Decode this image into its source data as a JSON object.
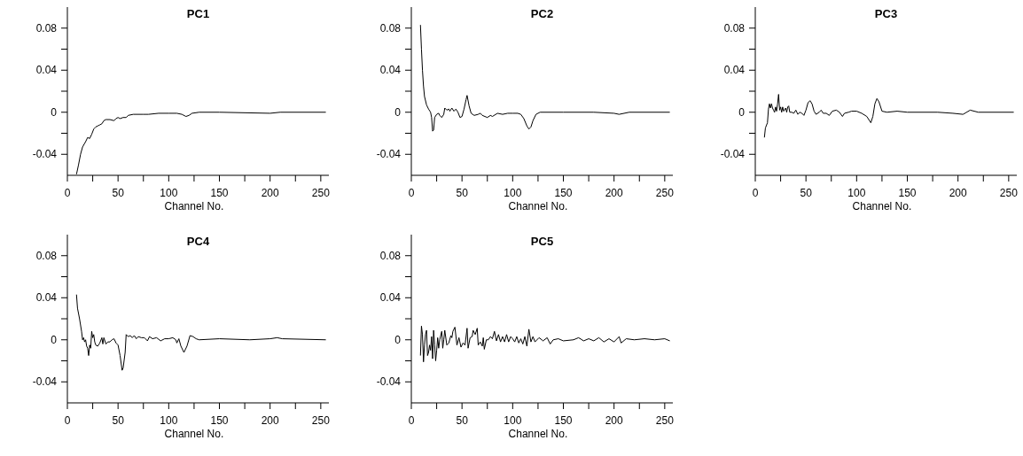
{
  "chart_data": [
    {
      "type": "line",
      "title": "PC1",
      "xlabel": "Channel No.",
      "xlim": [
        0,
        258
      ],
      "ylim": [
        -0.06,
        0.1
      ],
      "xticks": [
        0,
        {
          "value": 25,
          "label": null
        },
        50,
        {
          "value": 75,
          "label": null
        },
        100,
        {
          "value": 125,
          "label": null
        },
        150,
        {
          "value": 175,
          "label": null
        },
        200,
        {
          "value": 225,
          "label": null
        },
        250
      ],
      "yticks": [
        -0.04,
        {
          "value": -0.02,
          "label": null
        },
        0,
        {
          "value": 0.02,
          "label": null
        },
        0.04,
        {
          "value": 0.06,
          "label": null
        },
        0.08
      ],
      "series": [
        {
          "color": "#000000",
          "x": [
            9,
            11,
            13,
            15,
            18,
            20,
            22,
            24,
            26,
            28,
            30,
            32,
            34,
            36,
            38,
            42,
            46,
            48,
            50,
            52,
            55,
            58,
            60,
            65,
            75,
            80,
            90,
            100,
            108,
            113,
            117,
            120,
            123,
            130,
            150,
            200,
            210,
            255
          ],
          "values": [
            -0.059,
            -0.05,
            -0.04,
            -0.033,
            -0.028,
            -0.024,
            -0.025,
            -0.021,
            -0.016,
            -0.014,
            -0.013,
            -0.012,
            -0.011,
            -0.008,
            -0.007,
            -0.007,
            -0.008,
            -0.006,
            -0.005,
            -0.006,
            -0.005,
            -0.005,
            -0.003,
            -0.002,
            -0.002,
            -0.002,
            -0.001,
            -0.001,
            -0.001,
            -0.002,
            -0.004,
            -0.003,
            -0.001,
            0,
            0,
            -0.001,
            0,
            0
          ]
        }
      ]
    },
    {
      "type": "line",
      "title": "PC2",
      "xlabel": "Channel No.",
      "xlim": [
        0,
        258
      ],
      "ylim": [
        -0.06,
        0.1
      ],
      "xticks": [
        0,
        {
          "value": 25,
          "label": null
        },
        50,
        {
          "value": 75,
          "label": null
        },
        100,
        {
          "value": 125,
          "label": null
        },
        150,
        {
          "value": 175,
          "label": null
        },
        200,
        {
          "value": 225,
          "label": null
        },
        250
      ],
      "yticks": [
        -0.04,
        {
          "value": -0.02,
          "label": null
        },
        0,
        {
          "value": 0.02,
          "label": null
        },
        0.04,
        {
          "value": 0.06,
          "label": null
        },
        0.08
      ],
      "series": [
        {
          "color": "#000000",
          "x": [
            9,
            10,
            11,
            12,
            13,
            15,
            17,
            19,
            20,
            21,
            22,
            23,
            25,
            27,
            28,
            30,
            32,
            33,
            35,
            37,
            38,
            40,
            42,
            44,
            46,
            48,
            50,
            52,
            54,
            55,
            57,
            59,
            62,
            66,
            68,
            70,
            75,
            78,
            80,
            85,
            90,
            95,
            100,
            105,
            108,
            111,
            114,
            116,
            118,
            120,
            123,
            127,
            150,
            180,
            200,
            205,
            215,
            255
          ],
          "values": [
            0.083,
            0.06,
            0.04,
            0.025,
            0.015,
            0.007,
            0.003,
            0,
            -0.005,
            -0.018,
            -0.017,
            -0.005,
            -0.002,
            -0.001,
            -0.003,
            -0.005,
            -0.002,
            0.004,
            0.002,
            0.003,
            0.001,
            0.004,
            0.001,
            0.003,
            0,
            -0.005,
            -0.004,
            0.003,
            0.012,
            0.016,
            0.006,
            -0.001,
            -0.003,
            -0.002,
            -0.001,
            -0.003,
            -0.005,
            -0.003,
            -0.004,
            -0.001,
            -0.002,
            -0.001,
            -0.001,
            -0.001,
            -0.002,
            -0.006,
            -0.013,
            -0.016,
            -0.014,
            -0.008,
            -0.002,
            0,
            0,
            0,
            -0.001,
            -0.002,
            0,
            0
          ]
        }
      ]
    },
    {
      "type": "line",
      "title": "PC3",
      "xlabel": "Channel No.",
      "xlim": [
        0,
        258
      ],
      "ylim": [
        -0.06,
        0.1
      ],
      "xticks": [
        0,
        {
          "value": 25,
          "label": null
        },
        50,
        {
          "value": 75,
          "label": null
        },
        100,
        {
          "value": 125,
          "label": null
        },
        150,
        {
          "value": 175,
          "label": null
        },
        200,
        {
          "value": 225,
          "label": null
        },
        250
      ],
      "yticks": [
        -0.04,
        {
          "value": -0.02,
          "label": null
        },
        0,
        {
          "value": 0.02,
          "label": null
        },
        0.04,
        {
          "value": 0.06,
          "label": null
        },
        0.08
      ],
      "series": [
        {
          "color": "#000000",
          "x": [
            9,
            10,
            12,
            13,
            14,
            15,
            16,
            17,
            18,
            19,
            20,
            21,
            22,
            23,
            24,
            25,
            26,
            27,
            28,
            30,
            31,
            32,
            33,
            34,
            36,
            38,
            40,
            42,
            44,
            46,
            48,
            50,
            52,
            54,
            56,
            58,
            60,
            63,
            65,
            67,
            70,
            73,
            76,
            80,
            83,
            86,
            88,
            92,
            95,
            100,
            105,
            110,
            114,
            116,
            118,
            120,
            122,
            125,
            130,
            140,
            150,
            180,
            195,
            205,
            212,
            220,
            255
          ],
          "values": [
            -0.024,
            -0.015,
            -0.01,
            0.003,
            0.008,
            0.004,
            0.008,
            0.004,
            0.002,
            0,
            0.005,
            0.001,
            0.008,
            0.017,
            0.002,
            0.005,
            0,
            0.005,
            0.001,
            0.004,
            0,
            0.005,
            0.006,
            0,
            0,
            -0.001,
            0.002,
            -0.002,
            0,
            -0.001,
            -0.003,
            0.002,
            0.009,
            0.011,
            0.008,
            0.001,
            -0.002,
            0,
            0.002,
            -0.001,
            -0.001,
            -0.003,
            0.001,
            0.002,
            0,
            -0.004,
            -0.001,
            0,
            0.001,
            0.001,
            -0.001,
            -0.004,
            -0.01,
            -0.004,
            0.008,
            0.013,
            0.01,
            0.001,
            0,
            0.001,
            0,
            0,
            -0.001,
            -0.002,
            0.002,
            0,
            0
          ]
        }
      ]
    },
    {
      "type": "line",
      "title": "PC4",
      "xlabel": "Channel No.",
      "xlim": [
        0,
        258
      ],
      "ylim": [
        -0.06,
        0.1
      ],
      "xticks": [
        0,
        {
          "value": 25,
          "label": null
        },
        50,
        {
          "value": 75,
          "label": null
        },
        100,
        {
          "value": 125,
          "label": null
        },
        150,
        {
          "value": 175,
          "label": null
        },
        200,
        {
          "value": 225,
          "label": null
        },
        250
      ],
      "yticks": [
        -0.04,
        {
          "value": -0.02,
          "label": null
        },
        0,
        {
          "value": 0.02,
          "label": null
        },
        0.04,
        {
          "value": 0.06,
          "label": null
        },
        0.08
      ],
      "series": [
        {
          "color": "#000000",
          "x": [
            9,
            10,
            12,
            14,
            15,
            16,
            17,
            18,
            19,
            20,
            21,
            22,
            23,
            24,
            25,
            26,
            27,
            28,
            30,
            32,
            34,
            35,
            36,
            38,
            40,
            42,
            44,
            46,
            48,
            50,
            52,
            54,
            55,
            57,
            58,
            60,
            62,
            64,
            66,
            68,
            70,
            73,
            76,
            79,
            81,
            84,
            88,
            92,
            96,
            100,
            104,
            107,
            108,
            110,
            112,
            115,
            118,
            121,
            124,
            127,
            130,
            150,
            180,
            200,
            207,
            212,
            255
          ],
          "values": [
            0.043,
            0.03,
            0.02,
            0.008,
            0,
            0.002,
            -0.002,
            0,
            -0.006,
            -0.008,
            -0.015,
            -0.005,
            -0.008,
            0.008,
            0.002,
            0.005,
            -0.002,
            -0.005,
            -0.006,
            -0.003,
            0.002,
            -0.004,
            0.002,
            -0.004,
            -0.002,
            -0.002,
            0,
            0.001,
            -0.003,
            -0.005,
            -0.015,
            -0.029,
            -0.027,
            -0.012,
            0.005,
            0.003,
            0.004,
            0.002,
            0.004,
            0.001,
            0.003,
            0.002,
            0.002,
            -0.001,
            0.003,
            0.001,
            0.002,
            -0.001,
            0.001,
            0.001,
            0.002,
            0,
            -0.003,
            0.001,
            -0.006,
            -0.012,
            -0.006,
            0.004,
            0.003,
            0.001,
            0,
            0.001,
            0,
            0.001,
            0.002,
            0.001,
            0
          ]
        }
      ]
    },
    {
      "type": "line",
      "title": "PC5",
      "xlabel": "Channel No.",
      "xlim": [
        0,
        258
      ],
      "ylim": [
        -0.06,
        0.1
      ],
      "xticks": [
        0,
        {
          "value": 25,
          "label": null
        },
        50,
        {
          "value": 75,
          "label": null
        },
        100,
        {
          "value": 125,
          "label": null
        },
        150,
        {
          "value": 175,
          "label": null
        },
        200,
        {
          "value": 225,
          "label": null
        },
        250
      ],
      "yticks": [
        -0.04,
        {
          "value": -0.02,
          "label": null
        },
        0,
        {
          "value": 0.02,
          "label": null
        },
        0.04,
        {
          "value": 0.06,
          "label": null
        },
        0.08
      ],
      "series": [
        {
          "color": "#000000",
          "x": [
            9,
            10,
            11,
            12,
            13,
            14,
            15,
            16,
            17,
            18,
            19,
            20,
            21,
            22,
            23,
            24,
            25,
            26,
            27,
            28,
            30,
            31,
            32,
            33,
            35,
            37,
            39,
            40,
            41,
            43,
            45,
            47,
            49,
            51,
            53,
            55,
            56,
            58,
            60,
            61,
            63,
            65,
            66,
            68,
            70,
            71,
            72,
            74,
            76,
            78,
            80,
            82,
            84,
            86,
            88,
            90,
            92,
            94,
            96,
            98,
            100,
            102,
            104,
            106,
            108,
            110,
            112,
            114,
            116,
            118,
            120,
            122,
            126,
            130,
            134,
            137,
            140,
            145,
            150,
            160,
            165,
            170,
            175,
            180,
            185,
            190,
            195,
            200,
            205,
            207,
            212,
            220,
            230,
            240,
            250,
            255
          ],
          "values": [
            -0.015,
            0.013,
            0.005,
            -0.021,
            -0.005,
            0.005,
            0.009,
            -0.015,
            -0.012,
            -0.005,
            -0.01,
            0.003,
            -0.018,
            0.009,
            -0.005,
            -0.02,
            -0.01,
            0.002,
            -0.008,
            0,
            0.008,
            -0.008,
            0,
            0.009,
            -0.005,
            -0.003,
            0.004,
            0.002,
            0.008,
            0.012,
            -0.005,
            0.002,
            -0.007,
            -0.003,
            -0.005,
            0.011,
            -0.008,
            0.002,
            0.003,
            0.009,
            0.005,
            0.011,
            -0.005,
            -0.002,
            -0.006,
            0.002,
            -0.009,
            0,
            0,
            0.003,
            0.001,
            0.008,
            -0.001,
            0.005,
            -0.002,
            0.003,
            -0.002,
            0.005,
            -0.002,
            0.003,
            0.001,
            -0.002,
            0.003,
            -0.003,
            0.001,
            -0.004,
            0.003,
            -0.006,
            0.01,
            -0.002,
            0.003,
            -0.002,
            0.002,
            -0.001,
            0.002,
            -0.004,
            0,
            0.001,
            -0.001,
            0,
            0.002,
            -0.001,
            0.001,
            -0.001,
            0.002,
            -0.002,
            0.001,
            -0.002,
            0.003,
            -0.003,
            0.001,
            0,
            0.001,
            0,
            0.001,
            -0.001
          ]
        }
      ]
    }
  ]
}
